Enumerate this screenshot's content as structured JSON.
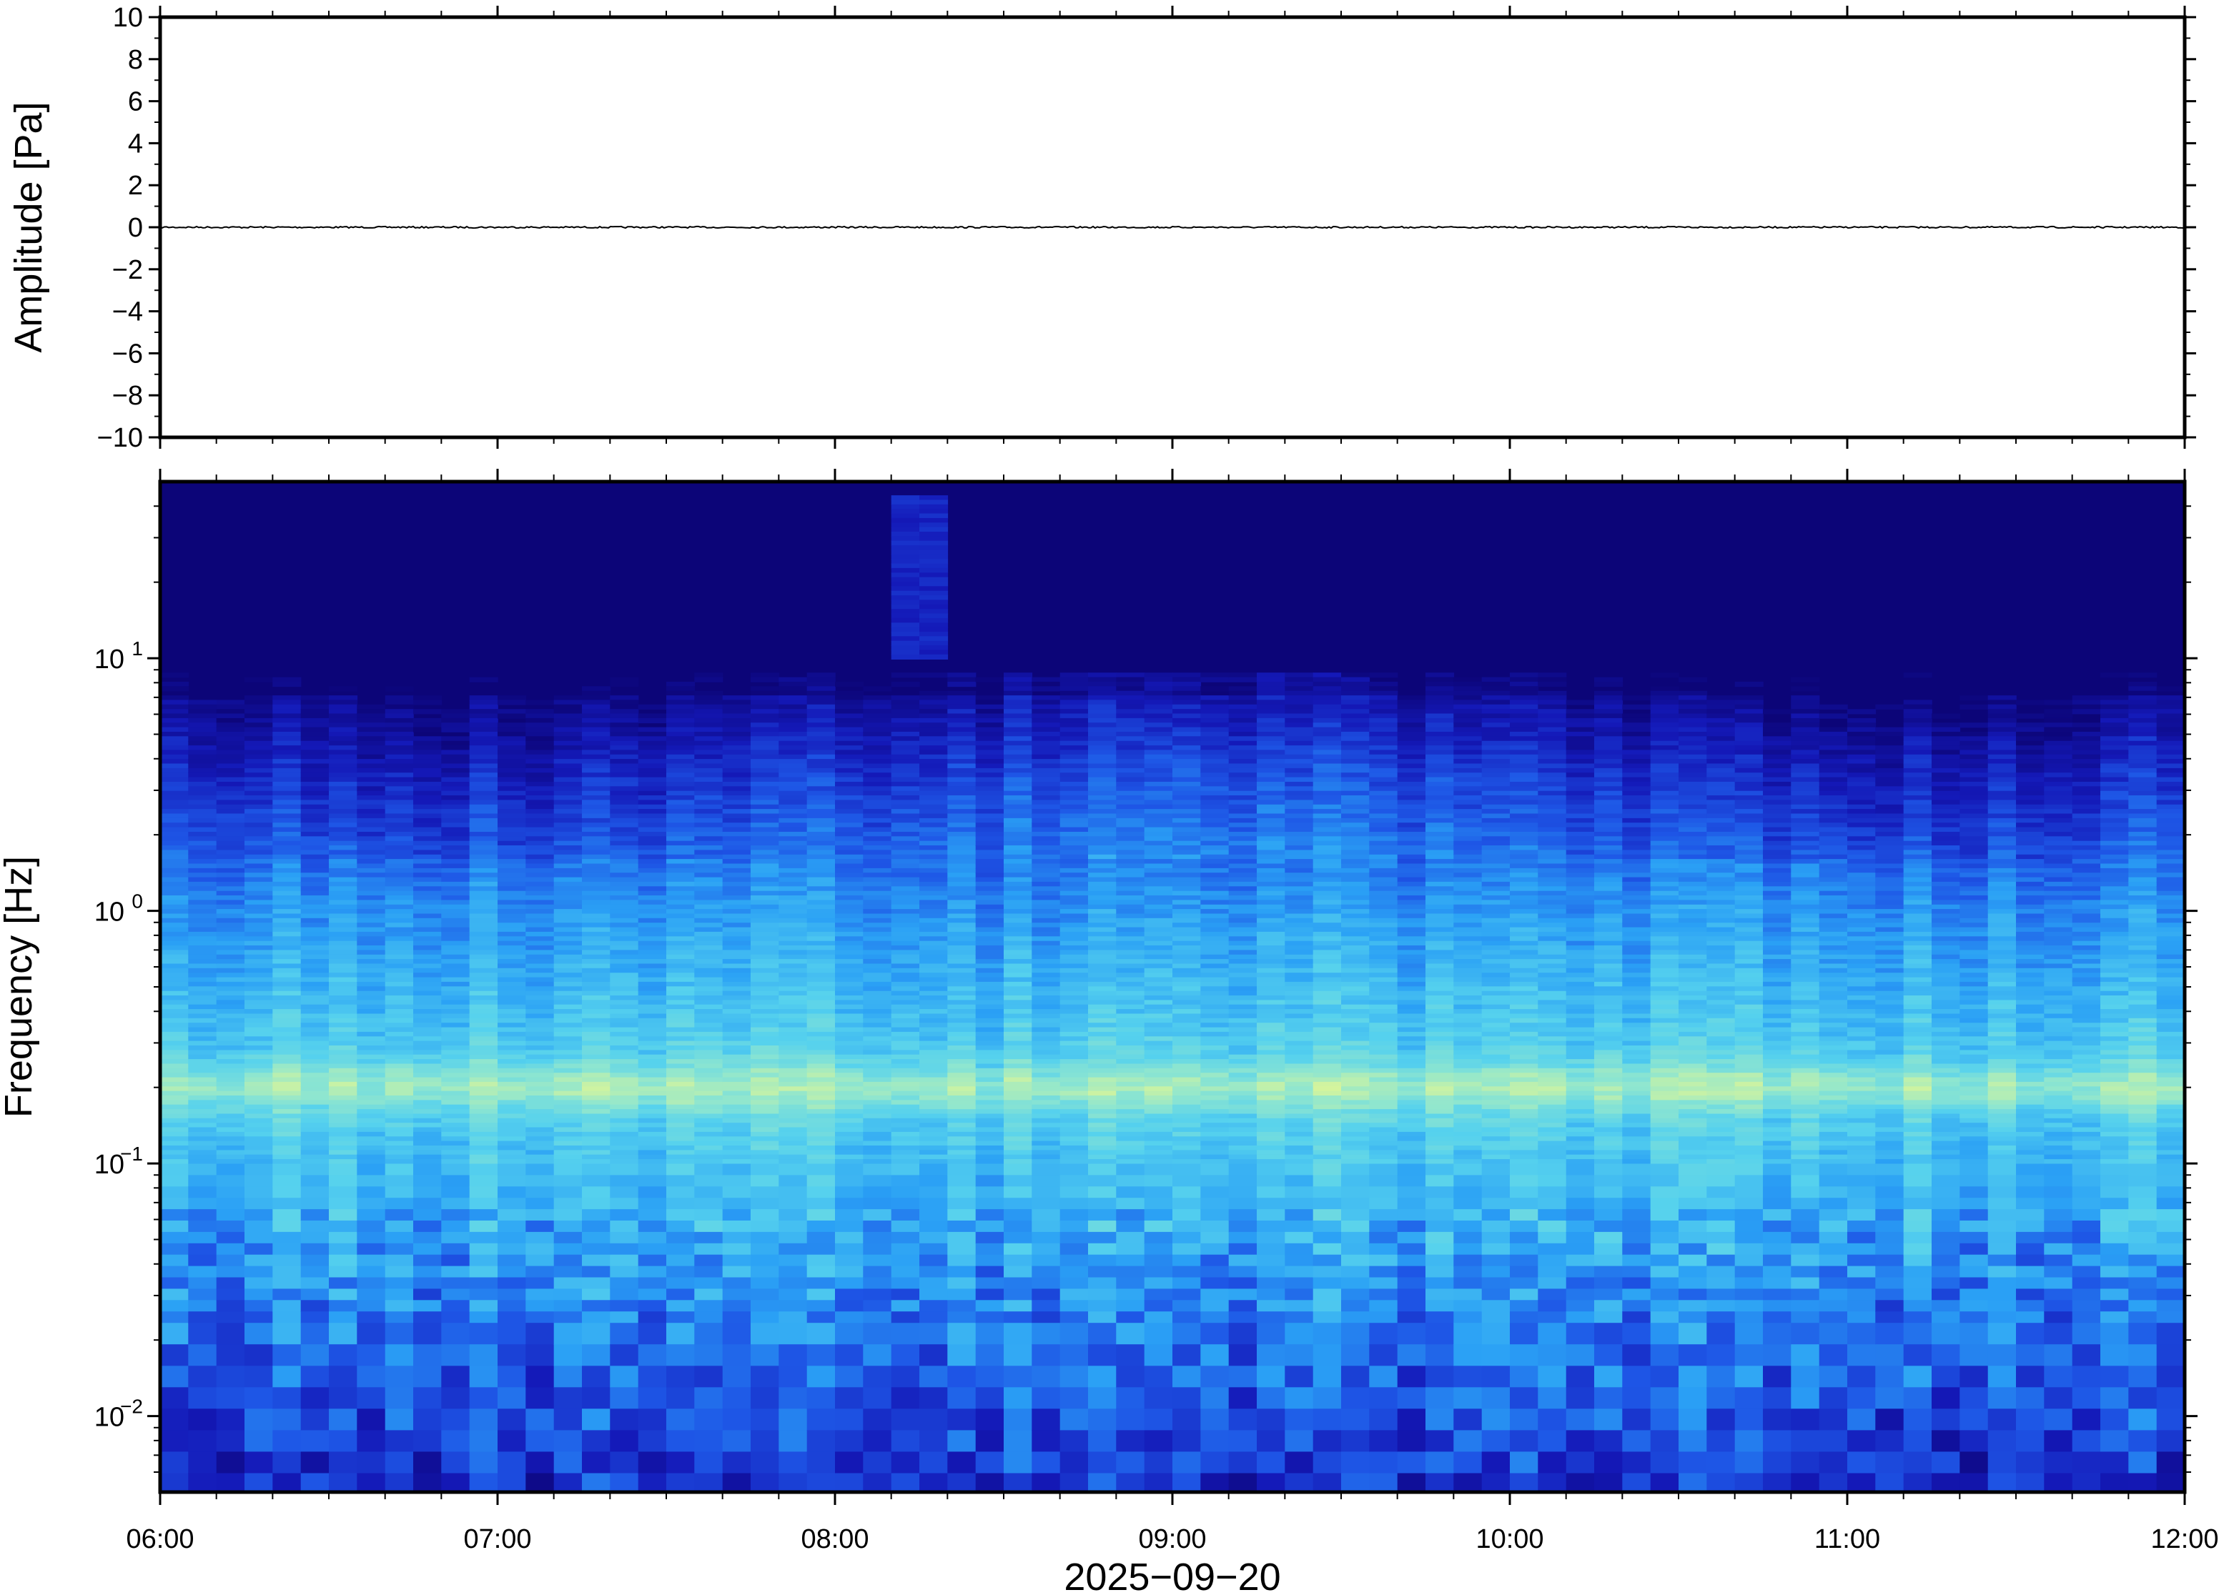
{
  "chart_data": [
    {
      "type": "line",
      "panel": "waveform",
      "ylabel": "Amplitude [Pa]",
      "ylim": [
        -10,
        10
      ],
      "yticks": [
        10,
        8,
        6,
        4,
        2,
        0,
        -2,
        -4,
        -6,
        -8,
        -10
      ],
      "ytick_labels": [
        "10",
        "8",
        "6",
        "4",
        "2",
        "0",
        "−2",
        "−4",
        "−6",
        "−8",
        "−10"
      ],
      "xlim": [
        "06:00",
        "12:00"
      ],
      "series": [
        {
          "x": [
            "06:00",
            "12:00"
          ],
          "y": [
            0,
            0
          ],
          "color": "#000000"
        }
      ],
      "grid": false
    },
    {
      "type": "heatmap",
      "panel": "spectrogram",
      "ylabel": "Frequency [Hz]",
      "yscale": "log",
      "ylim": [
        0.005,
        50
      ],
      "yticks": [
        0.01,
        0.1,
        1,
        10
      ],
      "ytick_labels": [
        {
          "base": "10",
          "exp": "−2"
        },
        {
          "base": "10",
          "exp": "−1"
        },
        {
          "base": "10",
          "exp": "0"
        },
        {
          "base": "10",
          "exp": "1"
        }
      ],
      "xlabel": "2025−09−20",
      "xlim": [
        "06:00",
        "12:00"
      ],
      "xtick_labels": [
        "06:00",
        "07:00",
        "08:00",
        "09:00",
        "10:00",
        "11:00",
        "12:00"
      ],
      "colormap": [
        "#0c0578",
        "#1419b8",
        "#1e56e6",
        "#2aa0f5",
        "#55d1ee",
        "#8fe6cf",
        "#d8f59a"
      ],
      "notable_features": [
        {
          "time_range": [
            "08:10",
            "08:18"
          ],
          "frequency_range": [
            10,
            45
          ],
          "description": "broadband burst"
        },
        {
          "frequency": 0.2,
          "description": "microseism band"
        }
      ],
      "grid": false
    }
  ]
}
